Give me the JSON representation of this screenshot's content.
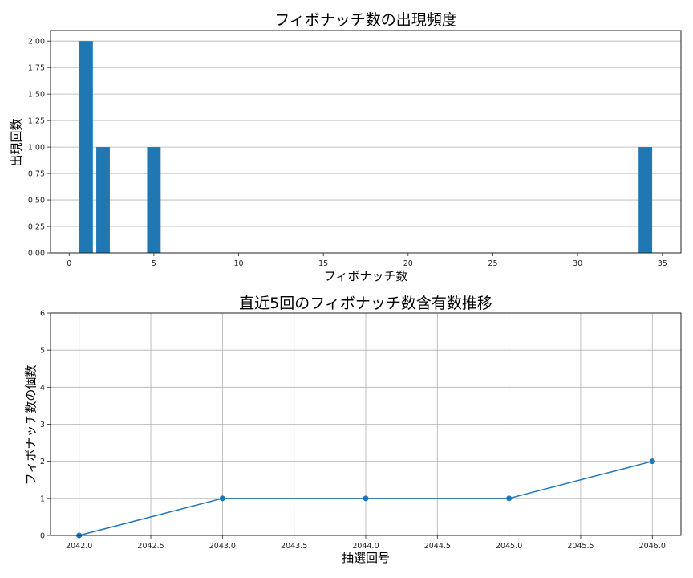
{
  "chart_data": [
    {
      "type": "bar",
      "title": "フィボナッチ数の出現頻度",
      "xlabel": "フィボナッチ数",
      "ylabel": "出現回数",
      "categories": [
        1,
        2,
        5,
        34
      ],
      "values": [
        2,
        1,
        1,
        1
      ],
      "xlim": [
        -1.1,
        36.1
      ],
      "ylim": [
        0,
        2.1
      ],
      "xticks": [
        0,
        5,
        10,
        15,
        20,
        25,
        30,
        35
      ],
      "xtick_labels": [
        "0",
        "5",
        "10",
        "15",
        "20",
        "25",
        "30",
        "35"
      ],
      "yticks": [
        0,
        0.25,
        0.5,
        0.75,
        1.0,
        1.25,
        1.5,
        1.75,
        2.0
      ],
      "ytick_labels": [
        "0.00",
        "0.25",
        "0.50",
        "0.75",
        "1.00",
        "1.25",
        "1.50",
        "1.75",
        "2.00"
      ],
      "grid": "y",
      "color": "#1f77b4",
      "bar_width": 0.8
    },
    {
      "type": "line",
      "title": "直近5回のフィボナッチ数含有数推移",
      "xlabel": "抽選回号",
      "ylabel": "フィボナッチ数の個数",
      "x": [
        2042,
        2043,
        2044,
        2045,
        2046
      ],
      "y": [
        0,
        1,
        1,
        1,
        2
      ],
      "xlim": [
        2041.8,
        2046.2
      ],
      "ylim": [
        0,
        6
      ],
      "xticks": [
        2042.0,
        2042.5,
        2043.0,
        2043.5,
        2044.0,
        2044.5,
        2045.0,
        2045.5,
        2046.0
      ],
      "xtick_labels": [
        "2042.0",
        "2042.5",
        "2043.0",
        "2043.5",
        "2044.0",
        "2044.5",
        "2045.0",
        "2045.5",
        "2046.0"
      ],
      "yticks": [
        0,
        1,
        2,
        3,
        4,
        5,
        6
      ],
      "ytick_labels": [
        "0",
        "1",
        "2",
        "3",
        "4",
        "5",
        "6"
      ],
      "grid": "both",
      "marker": "o",
      "color": "#1f77b4"
    }
  ]
}
